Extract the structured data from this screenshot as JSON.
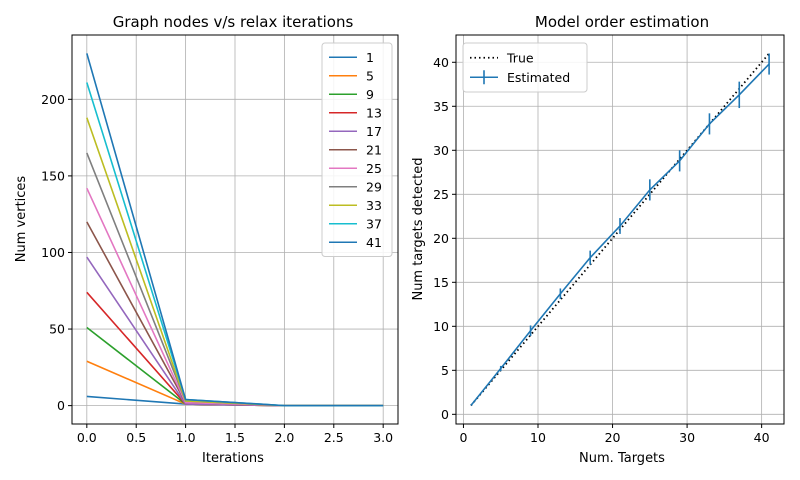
{
  "chart_data": [
    {
      "type": "line",
      "title": "Graph nodes v/s relax iterations",
      "xlabel": "Iterations",
      "ylabel": "Num vertices",
      "xlim": [
        -0.15,
        3.15
      ],
      "ylim": [
        -12,
        242
      ],
      "xticks": [
        "0.0",
        "0.5",
        "1.0",
        "1.5",
        "2.0",
        "2.5",
        "3.0"
      ],
      "yticks": [
        "0",
        "50",
        "100",
        "150",
        "200"
      ],
      "grid": true,
      "legend_position": "top-right",
      "x": [
        0,
        1,
        2,
        3
      ],
      "series": [
        {
          "name": "1",
          "color": "#1f77b4",
          "values": [
            6,
            1,
            0,
            0
          ]
        },
        {
          "name": "5",
          "color": "#ff7f0e",
          "values": [
            29,
            1,
            0,
            0
          ]
        },
        {
          "name": "9",
          "color": "#2ca02c",
          "values": [
            51,
            1,
            0,
            0
          ]
        },
        {
          "name": "13",
          "color": "#d62728",
          "values": [
            74,
            1,
            0,
            0
          ]
        },
        {
          "name": "17",
          "color": "#9467bd",
          "values": [
            97,
            1,
            0,
            0
          ]
        },
        {
          "name": "21",
          "color": "#8c564b",
          "values": [
            120,
            2,
            0,
            0
          ]
        },
        {
          "name": "25",
          "color": "#e377c2",
          "values": [
            142,
            2,
            0,
            0
          ]
        },
        {
          "name": "29",
          "color": "#7f7f7f",
          "values": [
            165,
            3,
            0,
            0
          ]
        },
        {
          "name": "33",
          "color": "#bcbd22",
          "values": [
            188,
            3,
            0,
            0
          ]
        },
        {
          "name": "37",
          "color": "#17becf",
          "values": [
            211,
            4,
            0,
            0
          ]
        },
        {
          "name": "41",
          "color": "#1f77b4",
          "values": [
            230,
            4,
            0,
            0
          ]
        }
      ]
    },
    {
      "type": "line",
      "title": "Model order estimation",
      "xlabel": "Num. Targets",
      "ylabel": "Num targets detected",
      "xlim": [
        -1,
        43
      ],
      "ylim": [
        -1.1,
        43.1
      ],
      "xticks": [
        "0",
        "10",
        "20",
        "30",
        "40"
      ],
      "yticks": [
        "0",
        "5",
        "10",
        "15",
        "20",
        "25",
        "30",
        "35",
        "40"
      ],
      "grid": true,
      "legend_position": "top-left",
      "x": [
        1,
        5,
        9,
        13,
        17,
        21,
        25,
        29,
        33,
        37,
        41
      ],
      "series": [
        {
          "name": "True",
          "color": "#000000",
          "style": "dotted",
          "values": [
            1,
            5,
            9,
            13,
            17,
            21,
            25,
            29,
            33,
            37,
            41
          ]
        },
        {
          "name": "Estimated",
          "color": "#1f77b4",
          "style": "solid-errorbar",
          "values": [
            1,
            5.2,
            9.5,
            13.7,
            17.8,
            21.4,
            25.5,
            28.8,
            33,
            36.3,
            39.8
          ],
          "errors": [
            0,
            0.3,
            0.6,
            0.6,
            0.8,
            0.9,
            1.2,
            1.2,
            1.2,
            1.5,
            1.2
          ]
        }
      ]
    }
  ]
}
